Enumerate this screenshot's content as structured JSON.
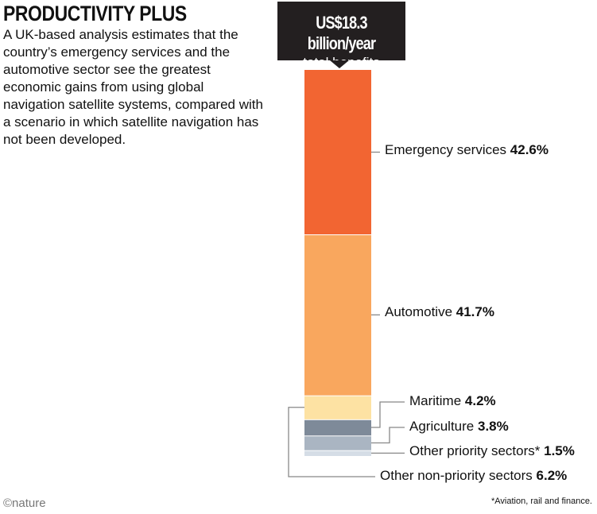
{
  "chart_data": {
    "type": "bar",
    "stacked": true,
    "title": "PRODUCTIVITY PLUS",
    "subtitle": "A UK-based analysis estimates that the country’s emergency services and the automotive sector see the greatest economic gains from using global navigation satellite systems, compared with a scenario in which satellite navigation has not been developed.",
    "total_value": "US$18.3 billion/year",
    "total_label": "total benefits",
    "unit": "%",
    "series": [
      {
        "name": "Emergency services",
        "value": 42.6,
        "value_label": "42.6%",
        "color": "#f26532"
      },
      {
        "name": "Automotive",
        "value": 41.7,
        "value_label": "41.7%",
        "color": "#f9a75e"
      },
      {
        "name": "Other non-priority sectors",
        "value": 6.2,
        "value_label": "6.2%",
        "color": "#fde2a3"
      },
      {
        "name": "Maritime",
        "value": 4.2,
        "value_label": "4.2%",
        "color": "#7e8a99"
      },
      {
        "name": "Agriculture",
        "value": 3.8,
        "value_label": "3.8%",
        "color": "#aab5c2"
      },
      {
        "name": "Other priority sectors*",
        "value": 1.5,
        "value_label": "1.5%",
        "color": "#d5dde6"
      }
    ],
    "footnote": "*Aviation, rail and finance."
  },
  "credit": "©nature"
}
